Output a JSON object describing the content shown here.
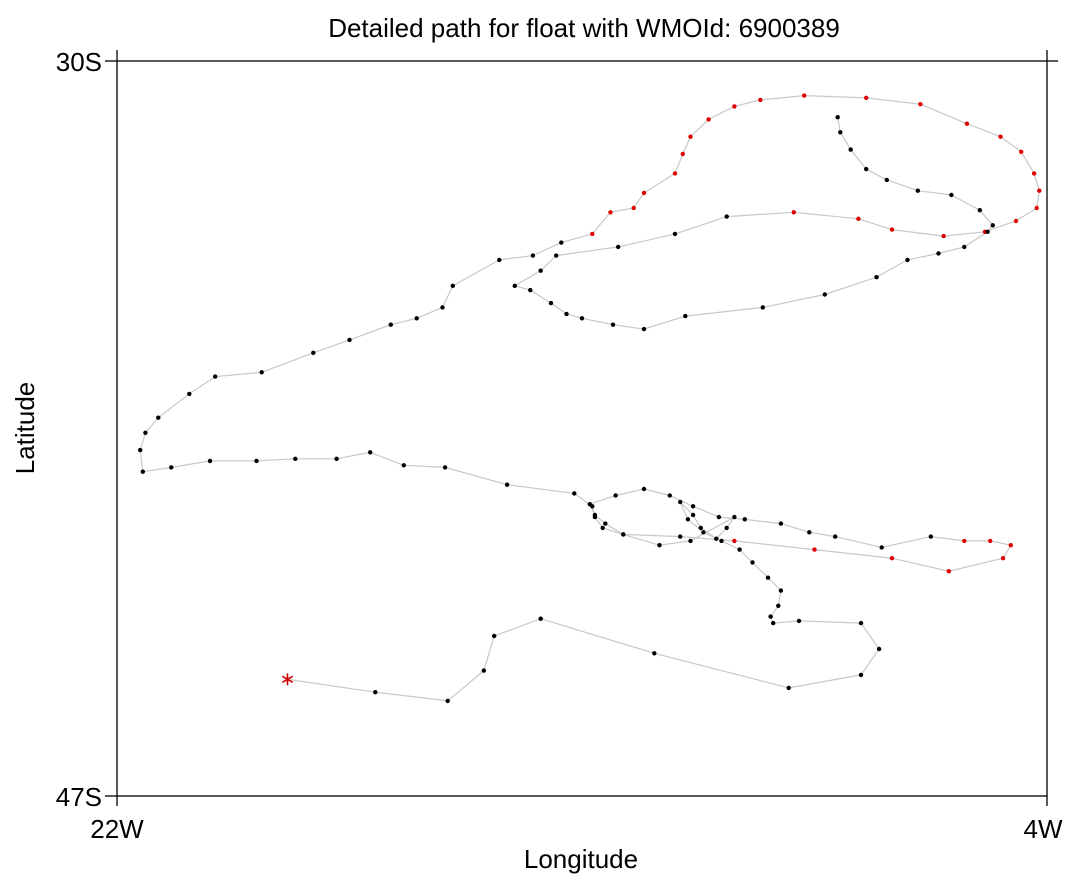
{
  "chart_data": {
    "type": "scatter",
    "title": "Detailed path for float with WMOId: 6900389",
    "xlabel": "Longitude",
    "ylabel": "Latitude",
    "xlim": [
      -22,
      -4
    ],
    "ylim": [
      -47,
      -30
    ],
    "x_tick_labels": [
      "22W",
      "4W"
    ],
    "y_tick_labels": [
      "30S",
      "47S"
    ],
    "grid": false,
    "colors": {
      "path_line": "#c8c8c8",
      "point": "#000000",
      "highlight_point": "#e00000",
      "start_marker": "#d00000",
      "axes": "#000000"
    },
    "start_marker": {
      "lon": -18.7,
      "lat": -44.3,
      "symbol": "*"
    },
    "path": [
      [
        -18.7,
        -44.3
      ],
      [
        -17.0,
        -44.6
      ],
      [
        -15.6,
        -44.8
      ],
      [
        -14.9,
        -44.1
      ],
      [
        -14.7,
        -43.3
      ],
      [
        -13.8,
        -42.9
      ],
      [
        -11.6,
        -43.7
      ],
      [
        -9.0,
        -44.5
      ],
      [
        -7.6,
        -44.2
      ],
      [
        -7.25,
        -43.6
      ],
      [
        -7.6,
        -43.0
      ],
      [
        -8.8,
        -42.95
      ],
      [
        -9.3,
        -43.0
      ],
      [
        -9.35,
        -42.85
      ],
      [
        -9.2,
        -42.6
      ],
      [
        -9.15,
        -42.25
      ],
      [
        -9.4,
        -41.95
      ],
      [
        -9.7,
        -41.6
      ],
      [
        -9.95,
        -41.3
      ],
      [
        -10.3,
        -41.1
      ],
      [
        -10.65,
        -40.9
      ],
      [
        -10.95,
        -40.6
      ],
      [
        -11.1,
        -40.2
      ],
      [
        -10.85,
        -40.5
      ],
      [
        -10.7,
        -40.8
      ],
      [
        -10.4,
        -41.05
      ],
      [
        -10.2,
        -40.8
      ],
      [
        -10.05,
        -40.55
      ],
      [
        -10.9,
        -41.1
      ],
      [
        -11.5,
        -41.2
      ],
      [
        -12.2,
        -40.95
      ],
      [
        -12.55,
        -40.7
      ],
      [
        -12.75,
        -40.5
      ],
      [
        -12.85,
        -40.25
      ],
      [
        -12.35,
        -40.05
      ],
      [
        -11.8,
        -39.9
      ],
      [
        -11.3,
        -40.05
      ],
      [
        -10.85,
        -40.3
      ],
      [
        -10.35,
        -40.55
      ],
      [
        -9.85,
        -40.6
      ],
      [
        -9.15,
        -40.7
      ],
      [
        -8.6,
        -40.9
      ],
      [
        -8.1,
        -41.0
      ],
      [
        -7.2,
        -41.25
      ],
      [
        -6.25,
        -41.0
      ],
      [
        -5.6,
        -41.1
      ],
      [
        -5.1,
        -41.1
      ],
      [
        -4.7,
        -41.2
      ],
      [
        -4.85,
        -41.5
      ],
      [
        -5.9,
        -41.8
      ],
      [
        -7.0,
        -41.5
      ],
      [
        -8.5,
        -41.3
      ],
      [
        -10.05,
        -41.1
      ],
      [
        -11.1,
        -41.0
      ],
      [
        -12.2,
        -40.95
      ],
      [
        -12.6,
        -40.8
      ],
      [
        -12.75,
        -40.55
      ],
      [
        -12.8,
        -40.3
      ],
      [
        -13.15,
        -40.0
      ],
      [
        -14.45,
        -39.8
      ],
      [
        -15.65,
        -39.4
      ],
      [
        -16.45,
        -39.35
      ],
      [
        -17.1,
        -39.05
      ],
      [
        -17.75,
        -39.2
      ],
      [
        -18.55,
        -39.2
      ],
      [
        -19.3,
        -39.25
      ],
      [
        -20.2,
        -39.25
      ],
      [
        -20.95,
        -39.4
      ],
      [
        -21.5,
        -39.5
      ],
      [
        -21.55,
        -39.0
      ],
      [
        -21.45,
        -38.6
      ],
      [
        -21.2,
        -38.25
      ],
      [
        -20.6,
        -37.7
      ],
      [
        -20.1,
        -37.3
      ],
      [
        -19.2,
        -37.2
      ],
      [
        -18.2,
        -36.75
      ],
      [
        -17.5,
        -36.45
      ],
      [
        -16.7,
        -36.1
      ],
      [
        -16.2,
        -35.95
      ],
      [
        -15.7,
        -35.7
      ],
      [
        -15.5,
        -35.2
      ],
      [
        -14.6,
        -34.6
      ],
      [
        -13.95,
        -34.5
      ],
      [
        -13.4,
        -34.2
      ],
      [
        -12.8,
        -34.0
      ],
      [
        -12.45,
        -33.5
      ],
      [
        -12.0,
        -33.4
      ],
      [
        -11.8,
        -33.05
      ],
      [
        -11.2,
        -32.6
      ],
      [
        -11.05,
        -32.15
      ],
      [
        -10.9,
        -31.75
      ],
      [
        -10.55,
        -31.35
      ],
      [
        -10.05,
        -31.05
      ],
      [
        -9.55,
        -30.9
      ],
      [
        -8.7,
        -30.8
      ],
      [
        -7.5,
        -30.85
      ],
      [
        -6.45,
        -31.0
      ],
      [
        -5.55,
        -31.45
      ],
      [
        -4.9,
        -31.75
      ],
      [
        -4.5,
        -32.1
      ],
      [
        -4.25,
        -32.6
      ],
      [
        -4.15,
        -33.0
      ],
      [
        -4.2,
        -33.4
      ],
      [
        -4.6,
        -33.7
      ],
      [
        -5.2,
        -33.95
      ],
      [
        -6.0,
        -34.05
      ],
      [
        -7.0,
        -33.9
      ],
      [
        -7.65,
        -33.65
      ],
      [
        -8.9,
        -33.5
      ],
      [
        -10.2,
        -33.6
      ],
      [
        -11.2,
        -34.0
      ],
      [
        -12.3,
        -34.3
      ],
      [
        -13.5,
        -34.5
      ],
      [
        -13.8,
        -34.85
      ],
      [
        -14.3,
        -35.2
      ],
      [
        -14.0,
        -35.3
      ],
      [
        -13.6,
        -35.6
      ],
      [
        -13.3,
        -35.85
      ],
      [
        -13.0,
        -35.95
      ],
      [
        -12.4,
        -36.1
      ],
      [
        -11.8,
        -36.2
      ],
      [
        -11.0,
        -35.9
      ],
      [
        -9.5,
        -35.7
      ],
      [
        -8.3,
        -35.4
      ],
      [
        -7.3,
        -35.0
      ],
      [
        -6.7,
        -34.6
      ],
      [
        -6.1,
        -34.45
      ],
      [
        -5.6,
        -34.3
      ],
      [
        -5.15,
        -33.95
      ],
      [
        -5.05,
        -33.8
      ],
      [
        -5.3,
        -33.45
      ],
      [
        -5.85,
        -33.1
      ],
      [
        -6.5,
        -33.0
      ],
      [
        -7.1,
        -32.75
      ],
      [
        -7.5,
        -32.5
      ],
      [
        -7.8,
        -32.05
      ],
      [
        -8.0,
        -31.65
      ],
      [
        -8.05,
        -31.3
      ]
    ]
  }
}
